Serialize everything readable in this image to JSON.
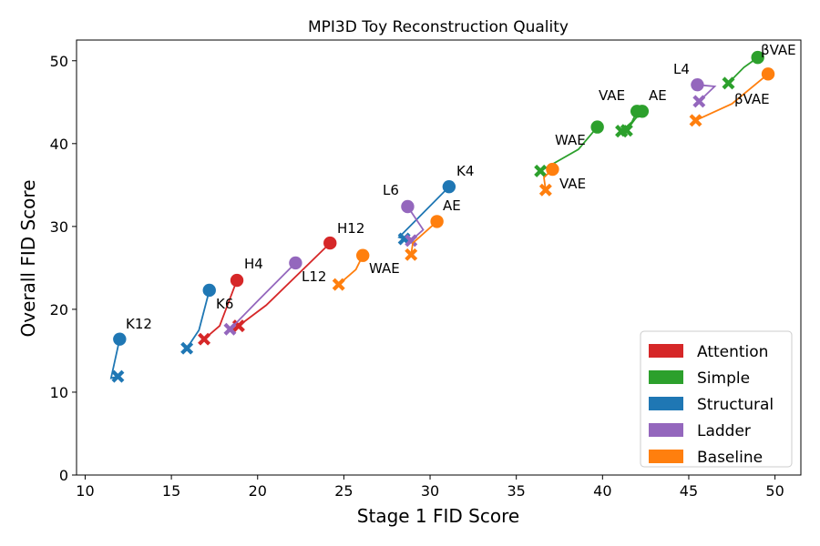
{
  "chart_data": {
    "type": "scatter",
    "title": "MPI3D Toy Reconstruction Quality",
    "xlabel": "Stage 1 FID Score",
    "ylabel": "Overall FID Score",
    "xlim": [
      9.5,
      51.5
    ],
    "ylim": [
      0,
      52.5
    ],
    "x_ticks": [
      10,
      15,
      20,
      25,
      30,
      35,
      40,
      45,
      50
    ],
    "y_ticks": [
      0,
      10,
      20,
      30,
      40,
      50
    ],
    "grid": false,
    "legend_position": "bottom-right",
    "marker_legend": {
      "circle": "",
      "x": ""
    },
    "series": [
      {
        "name": "Attention",
        "color": "#d62728",
        "pairs": [
          {
            "label": "H12",
            "circle": [
              24.2,
              28.0
            ],
            "x": [
              18.9,
              18.0
            ],
            "via": [
              [
                20.5,
                20.5
              ]
            ]
          },
          {
            "label": "H4",
            "circle": [
              18.8,
              23.5
            ],
            "x": [
              16.9,
              16.4
            ],
            "via": [
              [
                17.8,
                18.0
              ]
            ]
          }
        ]
      },
      {
        "name": "Simple",
        "color": "#2ca02c",
        "pairs": [
          {
            "label": "βVAE",
            "circle": [
              49.0,
              50.4
            ],
            "x": [
              47.3,
              47.3
            ],
            "via": [
              [
                48.2,
                49.2
              ]
            ]
          },
          {
            "label": "VAE",
            "circle": [
              39.7,
              42.0
            ],
            "x": [
              36.4,
              36.7
            ],
            "via": [
              [
                38.6,
                39.3
              ]
            ]
          },
          {
            "label": "AE",
            "circle": [
              42.3,
              43.9
            ],
            "x": [
              41.4,
              41.6
            ],
            "via": [
              [
                41.9,
                43.0
              ]
            ]
          },
          {
            "label": "",
            "circle": [
              42.0,
              43.9
            ],
            "x": [
              41.1,
              41.5
            ],
            "via": [
              [
                41.7,
                42.6
              ]
            ]
          }
        ]
      },
      {
        "name": "Structural",
        "color": "#1f77b4",
        "pairs": [
          {
            "label": "K4",
            "circle": [
              31.1,
              34.8
            ],
            "x": [
              28.5,
              28.5
            ],
            "via": [
              [
                28.2,
                28.7
              ]
            ]
          },
          {
            "label": "K6",
            "circle": [
              17.2,
              22.3
            ],
            "x": [
              15.9,
              15.3
            ],
            "via": [
              [
                16.6,
                17.5
              ]
            ]
          },
          {
            "label": "K12",
            "circle": [
              12.0,
              16.4
            ],
            "x": [
              11.9,
              11.9
            ],
            "via": [
              [
                11.5,
                11.7
              ]
            ]
          }
        ]
      },
      {
        "name": "Ladder",
        "color": "#9467bd",
        "pairs": [
          {
            "label": "L4",
            "circle": [
              45.5,
              47.1
            ],
            "x": [
              45.6,
              45.1
            ],
            "via": [
              [
                46.5,
                46.9
              ]
            ]
          },
          {
            "label": "L6",
            "circle": [
              28.7,
              32.4
            ],
            "x": [
              28.9,
              28.3
            ],
            "via": [
              [
                29.6,
                29.6
              ]
            ]
          },
          {
            "label": "L12",
            "circle": [
              22.2,
              25.6
            ],
            "x": [
              18.4,
              17.6
            ],
            "via": [
              [
                20.0,
                21.0
              ]
            ]
          }
        ]
      },
      {
        "name": "Baseline",
        "color": "#ff7f0e",
        "pairs": [
          {
            "label": "βVAE",
            "circle": [
              49.6,
              48.4
            ],
            "x": [
              45.4,
              42.8
            ],
            "via": [
              [
                47.5,
                44.8
              ]
            ]
          },
          {
            "label": "VAE",
            "circle": [
              37.1,
              36.9
            ],
            "x": [
              36.7,
              34.4
            ],
            "via": [
              [
                36.6,
                35.9
              ]
            ]
          },
          {
            "label": "AE",
            "circle": [
              30.4,
              30.6
            ],
            "x": [
              28.9,
              26.6
            ],
            "via": [
              [
                29.0,
                28.0
              ]
            ]
          },
          {
            "label": "WAE",
            "circle": [
              26.1,
              26.5
            ],
            "x": [
              24.7,
              23.0
            ],
            "via": [
              [
                25.7,
                24.8
              ]
            ]
          }
        ]
      }
    ],
    "annotations": [
      {
        "text": "βVAE",
        "series": "Simple"
      },
      {
        "text": "βVAE",
        "series": "Baseline"
      },
      {
        "text": "L4",
        "series": "Ladder"
      },
      {
        "text": "VAE",
        "series": "Simple"
      },
      {
        "text": "AE",
        "series": "Simple"
      },
      {
        "text": "WAE",
        "series": "Simple"
      },
      {
        "text": "VAE",
        "series": "Baseline"
      },
      {
        "text": "K4",
        "series": "Structural"
      },
      {
        "text": "L6",
        "series": "Ladder"
      },
      {
        "text": "AE",
        "series": "Baseline"
      },
      {
        "text": "H12",
        "series": "Attention"
      },
      {
        "text": "WAE",
        "series": "Baseline"
      },
      {
        "text": "L12",
        "series": "Ladder"
      },
      {
        "text": "H4",
        "series": "Attention"
      },
      {
        "text": "K6",
        "series": "Structural"
      },
      {
        "text": "K12",
        "series": "Structural"
      }
    ],
    "extra_points": [
      {
        "series": "Simple",
        "x": 41.1,
        "y": 41.5
      }
    ]
  }
}
